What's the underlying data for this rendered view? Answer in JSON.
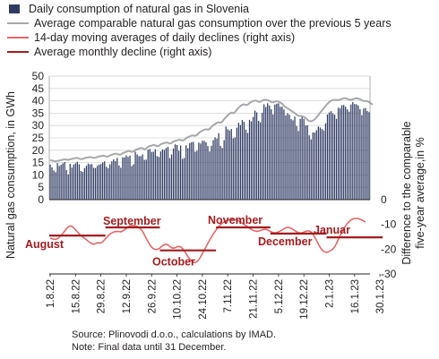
{
  "chart_data": {
    "type": "bar",
    "legend": [
      {
        "label": "Daily consumption of natural gas in Slovenia",
        "kind": "box",
        "color": "#2f3b63"
      },
      {
        "label": "Average comparable natural gas consumption over the previous 5 years",
        "kind": "line",
        "color": "#a6a8ab"
      },
      {
        "label": "14-day moving averages of daily declines (right axis)",
        "kind": "line",
        "color": "#e2686a"
      },
      {
        "label": "Average monthly decline (right axis)",
        "kind": "line",
        "color": "#a51c1f"
      }
    ],
    "ylabel": "Natural gas consumption, in GWh",
    "y2label": "Difference to the comparable five-year average,in %",
    "ylim": [
      0,
      50
    ],
    "yticks": [
      0,
      5,
      10,
      15,
      20,
      25,
      30,
      35,
      40,
      45,
      50
    ],
    "y2lim": [
      -30,
      0
    ],
    "y2ticks": [
      0,
      -10,
      -20,
      -30
    ],
    "xticks": [
      "1.8.22",
      "15.8.22",
      "29.8.22",
      "12.9.22",
      "26.9.22",
      "10.10.22",
      "24.10.22",
      "7.11.22",
      "21.11.22",
      "5.12.22",
      "19.12.22",
      "2.1.23",
      "16.1.23",
      "30.1.23"
    ],
    "bars": {
      "name": "Daily consumption of natural gas in Slovenia",
      "values": [
        14.2,
        13.1,
        11.8,
        11.1,
        14.8,
        13.6,
        14.1,
        14.7,
        15.2,
        12.0,
        10.2,
        14.5,
        13.0,
        14.2,
        14.7,
        15.3,
        14.3,
        11.6,
        11.2,
        12.8,
        13.7,
        14.6,
        14.3,
        14.4,
        12.9,
        12.8,
        13.7,
        14.2,
        14.4,
        15.1,
        15.5,
        13.3,
        12.7,
        14.3,
        15.5,
        16.3,
        15.6,
        16.9,
        13.8,
        12.9,
        17.1,
        17.1,
        17.9,
        17.3,
        17.8,
        13.6,
        14.3,
        19.4,
        18.3,
        17.6,
        17.6,
        18.3,
        16.1,
        16.2,
        20.2,
        20.5,
        19.3,
        19.4,
        20.4,
        17.6,
        17.3,
        19.5,
        20.3,
        20.1,
        20.9,
        21.3,
        16.8,
        18.3,
        20.7,
        22.4,
        22.1,
        19.8,
        21.9,
        16.5,
        16.9,
        22.0,
        20.8,
        22.9,
        23.2,
        23.4,
        19.4,
        19.8,
        23.1,
        22.7,
        23.8,
        23.8,
        23.2,
        21.7,
        19.5,
        21.8,
        24.1,
        25.2,
        24.7,
        26.9,
        21.8,
        20.9,
        24.1,
        29.6,
        28.5,
        28.0,
        28.6,
        24.8,
        25.2,
        29.1,
        31.1,
        30.2,
        32.2,
        31.5,
        28.3,
        27.0,
        32.3,
        31.7,
        33.5,
        36.0,
        35.3,
        31.9,
        31.3,
        35.2,
        38.6,
        37.5,
        39.0,
        38.1,
        36.6,
        34.5,
        38.5,
        38.8,
        39.0,
        37.6,
        37.6,
        36.5,
        34.1,
        35.0,
        34.4,
        32.6,
        32.1,
        33.6,
        29.8,
        27.8,
        32.7,
        33.9,
        32.7,
        30.0,
        30.1,
        26.0,
        24.4,
        27.2,
        27.2,
        28.1,
        29.6,
        29.2,
        28.6,
        28.0,
        30.9,
        34.5,
        35.3,
        35.8,
        34.9,
        34.4,
        32.7,
        37.2,
        37.0,
        38.2,
        38.3,
        37.6,
        36.5,
        35.6,
        38.5,
        39.5,
        38.7,
        38.6,
        38.1,
        36.6,
        34.2,
        36.9,
        37.1,
        35.9,
        35.4
      ]
    },
    "average_5y": {
      "name": "Average comparable natural gas consumption over the previous 5 years",
      "values": [
        16.0,
        15.8,
        15.7,
        15.5,
        15.7,
        15.8,
        16.0,
        16.2,
        16.3,
        16.2,
        16.1,
        16.3,
        16.5,
        16.7,
        16.8,
        16.9,
        16.6,
        16.4,
        16.5,
        16.8,
        17.0,
        17.1,
        17.2,
        17.1,
        16.9,
        17.0,
        17.3,
        17.5,
        17.6,
        17.8,
        17.7,
        17.4,
        17.5,
        17.9,
        18.2,
        18.4,
        18.6,
        18.5,
        18.2,
        18.3,
        18.8,
        19.1,
        19.4,
        19.7,
        19.6,
        19.3,
        19.5,
        20.1,
        20.4,
        20.6,
        20.9,
        20.8,
        20.4,
        20.7,
        21.4,
        21.7,
        21.9,
        22.1,
        22.0,
        21.6,
        21.8,
        22.4,
        22.7,
        22.9,
        23.1,
        23.0,
        22.7,
        22.9,
        23.5,
        23.8,
        24.0,
        24.2,
        24.2,
        23.9,
        24.2,
        24.9,
        25.3,
        25.6,
        25.9,
        26.0,
        25.8,
        26.2,
        27.0,
        27.5,
        27.9,
        28.3,
        28.5,
        28.3,
        28.6,
        29.5,
        30.1,
        30.6,
        31.1,
        31.3,
        31.1,
        31.6,
        32.6,
        33.4,
        34.1,
        34.8,
        35.2,
        35.0,
        35.4,
        36.4,
        37.2,
        37.9,
        38.4,
        38.6,
        38.3,
        38.4,
        39.1,
        39.6,
        39.9,
        40.1,
        40.0,
        39.6,
        39.6,
        40.1,
        40.4,
        40.4,
        40.3,
        40.0,
        39.5,
        39.4,
        39.7,
        39.8,
        39.6,
        39.3,
        38.8,
        38.0,
        37.4,
        37.0,
        36.5,
        36.0,
        35.5,
        35.0,
        34.3,
        33.9,
        33.9,
        33.8,
        33.5,
        33.0,
        32.3,
        31.8,
        31.7,
        32.0,
        32.5,
        33.3,
        34.2,
        35.2,
        36.1,
        37.0,
        37.9,
        38.8,
        39.5,
        40.0,
        40.3,
        40.4,
        40.3,
        40.3,
        40.5,
        40.8,
        41.0,
        41.0,
        40.8,
        40.5,
        40.4,
        40.6,
        40.9,
        41.0,
        40.9,
        40.6,
        40.2,
        39.9,
        39.9,
        39.8,
        39.5,
        39.0,
        38.4
      ]
    },
    "moving_avg_decline": {
      "name": "14-day moving averages of daily declines (right axis)",
      "values": [
        -15.5,
        -15.8,
        -16.0,
        -16.0,
        -15.8,
        -15.2,
        -14.5,
        -13.6,
        -12.7,
        -11.8,
        -11.0,
        -10.6,
        -10.8,
        -11.4,
        -12.2,
        -13.0,
        -13.8,
        -14.5,
        -15.1,
        -15.6,
        -16.2,
        -16.8,
        -17.3,
        -17.8,
        -18.0,
        -17.8,
        -17.4,
        -17.5,
        -17.5,
        -17.0,
        -16.2,
        -15.4,
        -14.6,
        -13.9,
        -13.4,
        -13.1,
        -12.9,
        -12.8,
        -12.9,
        -13.0,
        -12.7,
        -12.2,
        -11.6,
        -11.0,
        -10.6,
        -10.4,
        -10.4,
        -10.6,
        -10.8,
        -11.2,
        -11.9,
        -12.9,
        -14.2,
        -15.6,
        -17.0,
        -18.2,
        -19.2,
        -19.8,
        -20.1,
        -20.1,
        -19.8,
        -19.2,
        -18.6,
        -18.2,
        -18.0,
        -18.3,
        -18.9,
        -19.4,
        -19.6,
        -19.4,
        -19.0,
        -18.9,
        -19.1,
        -19.7,
        -20.6,
        -21.8,
        -23.0,
        -24.0,
        -24.8,
        -25.3,
        -25.4,
        -25.0,
        -24.2,
        -23.1,
        -21.8,
        -20.4,
        -19.0,
        -17.6,
        -16.3,
        -15.1,
        -13.9,
        -12.8,
        -11.8,
        -10.9,
        -10.1,
        -9.5,
        -9.0,
        -8.6,
        -8.3,
        -8.1,
        -8.0,
        -8.0,
        -8.1,
        -8.3,
        -8.6,
        -9.0,
        -9.5,
        -10.0,
        -10.5,
        -11.0,
        -11.5,
        -12.0,
        -12.4,
        -12.7,
        -12.8,
        -12.7,
        -12.5,
        -12.2,
        -12.0,
        -12.0,
        -12.2,
        -12.6,
        -13.0,
        -13.3,
        -13.4,
        -13.3,
        -13.0,
        -12.6,
        -12.2,
        -11.8,
        -11.4,
        -11.2,
        -11.3,
        -11.6,
        -12.0,
        -12.5,
        -13.0,
        -13.3,
        -13.5,
        -13.4,
        -13.1,
        -12.8,
        -12.6,
        -12.7,
        -13.1,
        -13.9,
        -15.1,
        -16.5,
        -18.0,
        -19.3,
        -20.3,
        -20.9,
        -21.2,
        -21.2,
        -20.9,
        -20.5,
        -19.9,
        -19.0,
        -17.7,
        -16.1,
        -14.5,
        -13.1,
        -11.8,
        -10.6,
        -9.6,
        -8.8,
        -8.2,
        -7.8,
        -7.6,
        -7.6,
        -7.7,
        -7.9,
        -8.2,
        -8.6,
        -9.1
      ]
    },
    "monthly_decline": {
      "name": "Average monthly decline (right axis)",
      "segments": [
        {
          "label": "August",
          "start": 0,
          "end": 31,
          "value": -14.5
        },
        {
          "label": "September",
          "start": 31,
          "end": 61,
          "value": -11.2
        },
        {
          "label": "October",
          "start": 61,
          "end": 92,
          "value": -20.5
        },
        {
          "label": "November",
          "start": 92,
          "end": 122,
          "value": -11.2
        },
        {
          "label": "December",
          "start": 122,
          "end": 153,
          "value": -13.7
        },
        {
          "label": "Januar",
          "start": 153,
          "end": 184,
          "value": -15.2
        }
      ]
    },
    "grid": true
  },
  "note": {
    "source": "Source: Plinovodi d.o.o., calculations by IMAD.",
    "final": "Note: Final data until 31 December."
  }
}
